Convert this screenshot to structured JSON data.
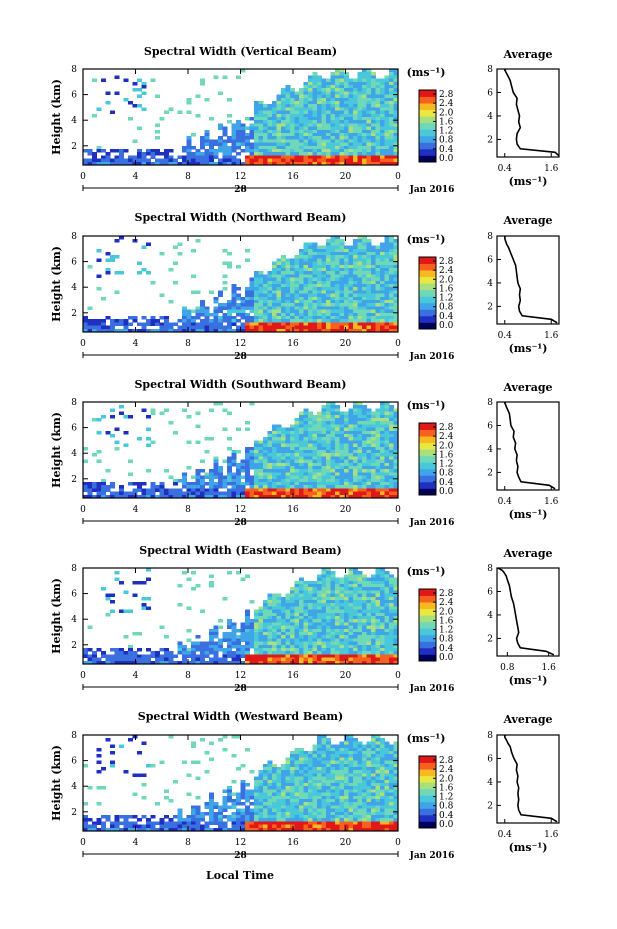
{
  "figure": {
    "common_xlabel": "Local Time",
    "colorbar_unit": "(ms⁻¹)",
    "colorbar_ticks": [
      "0.0",
      "0.4",
      "0.8",
      "1.2",
      "1.6",
      "2.0",
      "2.4",
      "2.8"
    ],
    "colors": [
      "#00005a",
      "#1f2fbf",
      "#3a6fe0",
      "#3fa5e8",
      "#48c8d8",
      "#6fd8b8",
      "#a8e080",
      "#e8e840",
      "#f8b820",
      "#f86020",
      "#e01818"
    ],
    "day_label": "28",
    "date_label": "Jan 2016",
    "avg_title": "Average",
    "avg_xlabel": "(ms⁻¹)"
  },
  "chart_data": [
    {
      "type": "heatmap",
      "title": "Spectral Width (Vertical Beam)",
      "ylabel": "Height (km)",
      "xticks": [
        "0",
        "4",
        "8",
        "12",
        "16",
        "20",
        "0"
      ],
      "yticks": [
        "2",
        "4",
        "6",
        "8"
      ],
      "xlim": [
        0,
        24
      ],
      "ylim": [
        0.5,
        8
      ],
      "profile": {
        "type": "line",
        "xticks": [
          "0.4",
          "1.6"
        ],
        "xlim": [
          0.2,
          1.8
        ],
        "yticks": [
          "2",
          "4",
          "6",
          "8"
        ],
        "ylim": [
          0.5,
          8
        ],
        "x": [
          1.8,
          1.7,
          0.8,
          0.72,
          0.7,
          0.72,
          0.8,
          0.76,
          0.78,
          0.74,
          0.7,
          0.72,
          0.62,
          0.58,
          0.54,
          0.5,
          0.45,
          0.42,
          0.4,
          0.42
        ],
        "y": [
          0.6,
          0.9,
          1.2,
          1.6,
          2.0,
          2.5,
          3.0,
          3.5,
          4.0,
          4.5,
          5.0,
          5.5,
          6.0,
          6.5,
          7.0,
          7.3,
          7.6,
          7.8,
          7.9,
          8.0
        ]
      }
    },
    {
      "type": "heatmap",
      "title": "Spectral Width (Northward Beam)",
      "ylabel": "Height (km)",
      "xticks": [
        "0",
        "4",
        "8",
        "12",
        "16",
        "20",
        "0"
      ],
      "yticks": [
        "2",
        "4",
        "6",
        "8"
      ],
      "xlim": [
        0,
        24
      ],
      "ylim": [
        0.5,
        8
      ],
      "profile": {
        "type": "line",
        "xticks": [
          "0.4",
          "1.6"
        ],
        "xlim": [
          0.2,
          1.8
        ],
        "yticks": [
          "2",
          "4",
          "6",
          "8"
        ],
        "ylim": [
          0.5,
          8
        ],
        "x": [
          1.75,
          1.6,
          0.85,
          0.78,
          0.76,
          0.8,
          0.78,
          0.8,
          0.74,
          0.72,
          0.7,
          0.68,
          0.62,
          0.56,
          0.5,
          0.45,
          0.42,
          0.4,
          0.4,
          0.42
        ],
        "y": [
          0.6,
          0.9,
          1.2,
          1.6,
          2.0,
          2.5,
          3.0,
          3.5,
          4.0,
          4.5,
          5.0,
          5.5,
          6.0,
          6.5,
          7.0,
          7.3,
          7.6,
          7.8,
          7.9,
          8.0
        ]
      }
    },
    {
      "type": "heatmap",
      "title": "Spectral Width (Southward Beam)",
      "ylabel": "Height (km)",
      "xticks": [
        "0",
        "4",
        "8",
        "12",
        "16",
        "20",
        "0"
      ],
      "yticks": [
        "2",
        "4",
        "6",
        "8"
      ],
      "xlim": [
        0,
        24
      ],
      "ylim": [
        0.5,
        8
      ],
      "profile": {
        "type": "line",
        "xticks": [
          "0.4",
          "1.6"
        ],
        "xlim": [
          0.2,
          1.8
        ],
        "yticks": [
          "2",
          "4",
          "6",
          "8"
        ],
        "ylim": [
          0.5,
          8
        ],
        "x": [
          1.7,
          1.55,
          0.82,
          0.76,
          0.72,
          0.74,
          0.7,
          0.72,
          0.66,
          0.68,
          0.62,
          0.64,
          0.56,
          0.54,
          0.52,
          0.48,
          0.44,
          0.42,
          0.4,
          0.42
        ],
        "y": [
          0.6,
          0.9,
          1.2,
          1.6,
          2.0,
          2.5,
          3.0,
          3.5,
          4.0,
          4.5,
          5.0,
          5.5,
          6.0,
          6.5,
          7.0,
          7.3,
          7.6,
          7.8,
          7.9,
          8.0
        ]
      }
    },
    {
      "type": "heatmap",
      "title": "Spectral Width (Eastward Beam)",
      "ylabel": "Height (km)",
      "xticks": [
        "0",
        "4",
        "8",
        "12",
        "16",
        "20",
        "0"
      ],
      "yticks": [
        "2",
        "4",
        "6",
        "8"
      ],
      "xlim": [
        0,
        24
      ],
      "ylim": [
        0.5,
        8
      ],
      "profile": {
        "type": "line",
        "xticks": [
          "0.8",
          "1.6"
        ],
        "xlim": [
          0.6,
          1.8
        ],
        "yticks": [
          "2",
          "4",
          "6",
          "8"
        ],
        "ylim": [
          0.5,
          8
        ],
        "x": [
          1.7,
          1.55,
          1.05,
          1.0,
          0.98,
          1.02,
          1.0,
          0.98,
          0.96,
          0.94,
          0.92,
          0.88,
          0.86,
          0.84,
          0.8,
          0.78,
          0.74,
          0.7,
          0.66,
          0.62
        ],
        "y": [
          0.6,
          0.9,
          1.2,
          1.6,
          2.0,
          2.5,
          3.0,
          3.5,
          4.0,
          4.5,
          5.0,
          5.5,
          6.0,
          6.5,
          7.0,
          7.3,
          7.6,
          7.8,
          7.9,
          8.0
        ]
      }
    },
    {
      "type": "heatmap",
      "title": "Spectral Width (Westward Beam)",
      "ylabel": "Height (km)",
      "xticks": [
        "0",
        "4",
        "8",
        "12",
        "16",
        "20",
        "0"
      ],
      "yticks": [
        "2",
        "4",
        "6",
        "8"
      ],
      "xlim": [
        0,
        24
      ],
      "ylim": [
        0.5,
        8
      ],
      "profile": {
        "type": "line",
        "xticks": [
          "0.4",
          "1.6"
        ],
        "xlim": [
          0.2,
          1.8
        ],
        "yticks": [
          "2",
          "4",
          "6",
          "8"
        ],
        "ylim": [
          0.5,
          8
        ],
        "x": [
          1.75,
          1.6,
          0.82,
          0.76,
          0.74,
          0.76,
          0.74,
          0.76,
          0.72,
          0.74,
          0.7,
          0.72,
          0.64,
          0.58,
          0.54,
          0.48,
          0.44,
          0.4,
          0.4,
          0.42
        ],
        "y": [
          0.6,
          0.9,
          1.2,
          1.6,
          2.0,
          2.5,
          3.0,
          3.5,
          4.0,
          4.5,
          5.0,
          5.5,
          6.0,
          6.5,
          7.0,
          7.3,
          7.6,
          7.8,
          7.9,
          8.0
        ]
      }
    }
  ]
}
